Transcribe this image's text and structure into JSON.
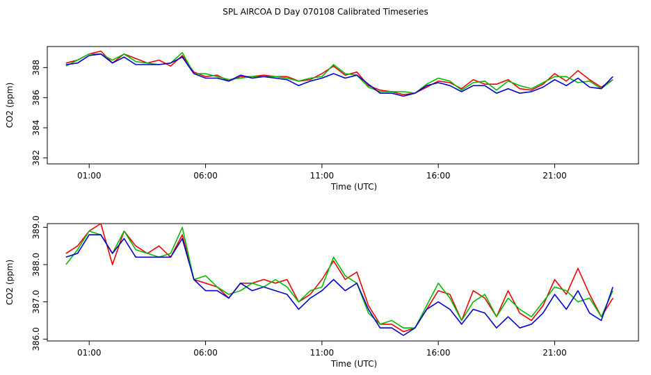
{
  "title": "SPL AIRCOA D  Day 070108  Calibrated Timeseries",
  "colors": {
    "red": "#ee0000",
    "green": "#00bb00",
    "blue": "#0000cc"
  },
  "chart_data": [
    {
      "type": "line",
      "xlabel": "Time (UTC)",
      "ylabel": "CO2 (ppm)",
      "x_unit": "hours UTC",
      "xlim": [
        -0.8,
        24.6
      ],
      "ylim": [
        381.6,
        389.4
      ],
      "x_ticks": [
        {
          "v": 1,
          "label": "01:00"
        },
        {
          "v": 6,
          "label": "06:00"
        },
        {
          "v": 11,
          "label": "11:00"
        },
        {
          "v": 16,
          "label": "16:00"
        },
        {
          "v": 21,
          "label": "21:00"
        }
      ],
      "y_ticks": [
        {
          "v": 382,
          "label": "382"
        },
        {
          "v": 384,
          "label": "384"
        },
        {
          "v": 386,
          "label": "386"
        },
        {
          "v": 388,
          "label": "388"
        }
      ],
      "x": [
        0,
        0.5,
        1,
        1.5,
        2,
        2.5,
        3,
        3.5,
        4,
        4.5,
        5,
        5.5,
        6,
        6.5,
        7,
        7.5,
        8,
        8.5,
        9,
        9.5,
        10,
        10.5,
        11,
        11.5,
        12,
        12.5,
        13,
        13.5,
        14,
        14.5,
        15,
        15.5,
        16,
        16.5,
        17,
        17.5,
        18,
        18.5,
        19,
        19.5,
        20,
        20.5,
        21,
        21.5,
        22,
        22.5,
        23,
        23.5
      ],
      "series": [
        {
          "color": "red",
          "values": [
            388.3,
            388.5,
            388.9,
            389.1,
            388.3,
            388.9,
            388.6,
            388.3,
            388.5,
            388.1,
            388.8,
            387.7,
            387.4,
            387.5,
            387.1,
            387.4,
            387.4,
            387.5,
            387.4,
            387.4,
            387.1,
            387.2,
            387.6,
            388.1,
            387.5,
            387.7,
            386.8,
            386.5,
            386.4,
            386.2,
            386.3,
            386.7,
            387.1,
            387.0,
            386.6,
            387.2,
            386.9,
            386.9,
            387.2,
            386.6,
            386.5,
            386.9,
            387.6,
            387.1,
            387.8,
            387.2,
            386.7,
            387.2
          ]
        },
        {
          "color": "green",
          "values": [
            388.1,
            388.5,
            388.9,
            388.9,
            388.5,
            388.9,
            388.4,
            388.3,
            388.2,
            388.3,
            389.0,
            387.6,
            387.6,
            387.4,
            387.2,
            387.3,
            387.4,
            387.4,
            387.4,
            387.3,
            387.1,
            387.3,
            387.4,
            388.2,
            387.6,
            387.5,
            386.7,
            386.4,
            386.4,
            386.4,
            386.3,
            386.9,
            387.3,
            387.1,
            386.5,
            387.0,
            387.1,
            386.5,
            387.1,
            386.8,
            386.6,
            387.0,
            387.4,
            387.4,
            387.0,
            387.1,
            386.6,
            387.2
          ]
        },
        {
          "color": "blue",
          "values": [
            388.2,
            388.3,
            388.8,
            388.9,
            388.3,
            388.7,
            388.2,
            388.2,
            388.2,
            388.3,
            388.7,
            387.6,
            387.3,
            387.3,
            387.1,
            387.5,
            387.3,
            387.4,
            387.3,
            387.2,
            386.8,
            387.1,
            387.3,
            387.6,
            387.3,
            387.5,
            386.9,
            386.3,
            386.3,
            386.1,
            386.3,
            386.8,
            387.0,
            386.8,
            386.4,
            386.8,
            386.8,
            386.3,
            386.6,
            386.3,
            386.4,
            386.7,
            387.2,
            386.8,
            387.3,
            386.7,
            386.6,
            387.4
          ]
        }
      ]
    },
    {
      "type": "line",
      "xlabel": "Time (UTC)",
      "ylabel": "CO2 (ppm)",
      "x_unit": "hours UTC",
      "xlim": [
        -0.8,
        24.6
      ],
      "ylim": [
        385.95,
        389.1
      ],
      "x_ticks": [
        {
          "v": 1,
          "label": "01:00"
        },
        {
          "v": 6,
          "label": "06:00"
        },
        {
          "v": 11,
          "label": "11:00"
        },
        {
          "v": 16,
          "label": "16:00"
        },
        {
          "v": 21,
          "label": "21:00"
        }
      ],
      "y_ticks": [
        {
          "v": 386,
          "label": "386.0"
        },
        {
          "v": 387,
          "label": "387.0"
        },
        {
          "v": 388,
          "label": "388.0"
        },
        {
          "v": 389,
          "label": "389.0"
        }
      ],
      "x": [
        0,
        0.5,
        1,
        1.5,
        2,
        2.5,
        3,
        3.5,
        4,
        4.5,
        5,
        5.5,
        6,
        6.5,
        7,
        7.5,
        8,
        8.5,
        9,
        9.5,
        10,
        10.5,
        11,
        11.5,
        12,
        12.5,
        13,
        13.5,
        14,
        14.5,
        15,
        15.5,
        16,
        16.5,
        17,
        17.5,
        18,
        18.5,
        19,
        19.5,
        20,
        20.5,
        21,
        21.5,
        22,
        22.5,
        23,
        23.5
      ],
      "series": [
        {
          "color": "red",
          "values": [
            388.3,
            388.5,
            388.9,
            389.1,
            388.0,
            388.9,
            388.5,
            388.3,
            388.5,
            388.2,
            388.8,
            387.6,
            387.5,
            387.4,
            387.1,
            387.5,
            387.5,
            387.6,
            387.5,
            387.6,
            387.0,
            387.2,
            387.6,
            388.1,
            387.6,
            387.8,
            386.9,
            386.4,
            386.4,
            386.2,
            386.3,
            386.8,
            387.3,
            387.2,
            386.5,
            387.3,
            387.1,
            386.6,
            387.3,
            386.7,
            386.5,
            386.9,
            387.6,
            387.2,
            387.9,
            387.2,
            386.6,
            387.1
          ]
        },
        {
          "color": "green",
          "values": [
            388.0,
            388.4,
            388.9,
            388.8,
            388.3,
            388.9,
            388.4,
            388.3,
            388.2,
            388.3,
            389.0,
            387.6,
            387.7,
            387.4,
            387.2,
            387.3,
            387.5,
            387.4,
            387.6,
            387.4,
            387.0,
            387.3,
            387.4,
            388.2,
            387.7,
            387.5,
            386.7,
            386.4,
            386.5,
            386.3,
            386.3,
            386.9,
            387.5,
            387.1,
            386.5,
            387.0,
            387.2,
            386.6,
            387.1,
            386.8,
            386.6,
            387.0,
            387.4,
            387.3,
            387.0,
            387.1,
            386.6,
            387.3
          ]
        },
        {
          "color": "blue",
          "values": [
            388.2,
            388.3,
            388.8,
            388.8,
            388.3,
            388.7,
            388.2,
            388.2,
            388.2,
            388.2,
            388.7,
            387.6,
            387.3,
            387.3,
            387.1,
            387.5,
            387.3,
            387.4,
            387.3,
            387.2,
            386.8,
            387.1,
            387.3,
            387.6,
            387.3,
            387.5,
            386.8,
            386.3,
            386.3,
            386.1,
            386.3,
            386.8,
            387.0,
            386.8,
            386.4,
            386.8,
            386.7,
            386.3,
            386.6,
            386.3,
            386.4,
            386.7,
            387.2,
            386.8,
            387.3,
            386.7,
            386.5,
            387.4
          ]
        }
      ]
    }
  ]
}
